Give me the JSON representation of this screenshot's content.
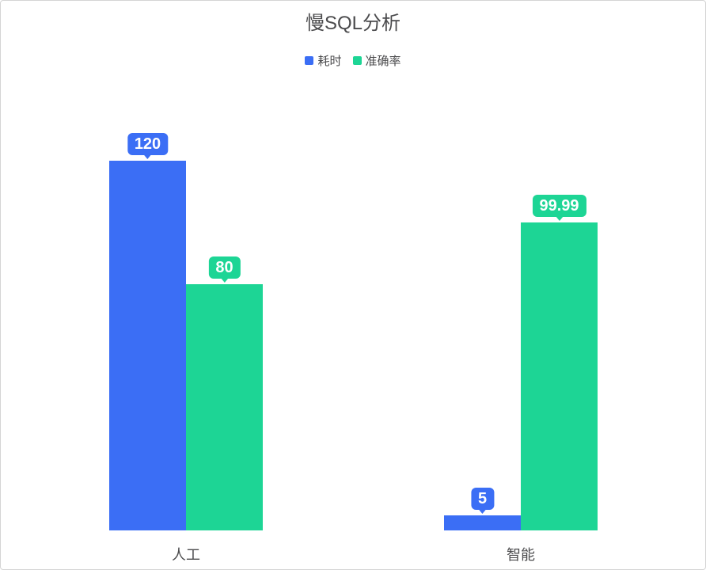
{
  "chart_data": {
    "type": "bar",
    "title": "慢SQL分析",
    "categories": [
      "人工",
      "智能"
    ],
    "series": [
      {
        "name": "耗时",
        "color": "#3B6EF5",
        "values": [
          120,
          5
        ]
      },
      {
        "name": "准确率",
        "color": "#1DD595",
        "values": [
          80,
          99.99
        ]
      }
    ],
    "value_labels": [
      [
        "120",
        "5"
      ],
      [
        "80",
        "99.99"
      ]
    ],
    "xlabel": "",
    "ylabel": "",
    "ylim": [
      0,
      120
    ],
    "grid": false,
    "legend_position": "top",
    "label_style": "rounded speech-bubble badge above each bar, filled with series color, white bold text"
  }
}
